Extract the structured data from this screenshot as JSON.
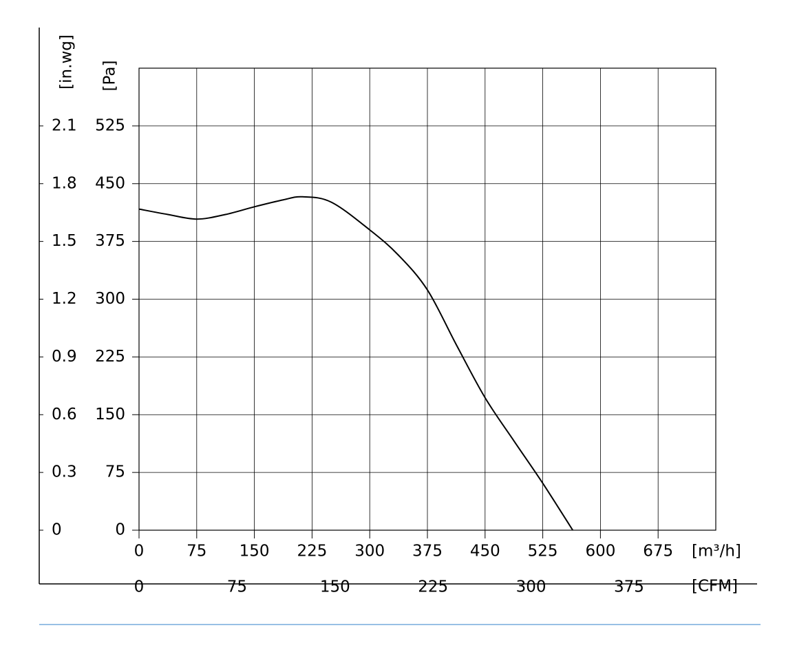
{
  "chart_data": {
    "type": "line",
    "x_label": "[m³/h]",
    "y_label": "[Pa]",
    "y2_label": "[in.wg]",
    "x2_label": "[CFM]",
    "x": [
      0,
      37.5,
      75,
      112.5,
      150,
      187.5,
      212.5,
      250,
      300,
      337.5,
      375,
      412.5,
      450,
      487.5,
      525,
      564
    ],
    "series": [
      {
        "color": "#000000",
        "values": [
          417,
          410,
          404,
          410,
          420,
          429,
          433,
          426,
          390,
          357,
          312,
          241,
          172,
          116,
          61,
          0
        ]
      }
    ],
    "xlim": [
      0,
      750
    ],
    "xticks": [
      0,
      75,
      150,
      225,
      300,
      375,
      450,
      525,
      600,
      675
    ],
    "ylim": [
      0,
      600
    ],
    "yticks": [
      0,
      75,
      150,
      225,
      300,
      375,
      450,
      525
    ],
    "y2lim": [
      0,
      2.4
    ],
    "y2ticks": [
      0,
      0.3,
      0.6,
      0.9,
      1.2,
      1.5,
      1.8,
      2.1
    ],
    "x2lim": [
      0,
      441.4
    ],
    "x2ticks": [
      0,
      75,
      150,
      225,
      300,
      375
    ],
    "grid": true
  }
}
